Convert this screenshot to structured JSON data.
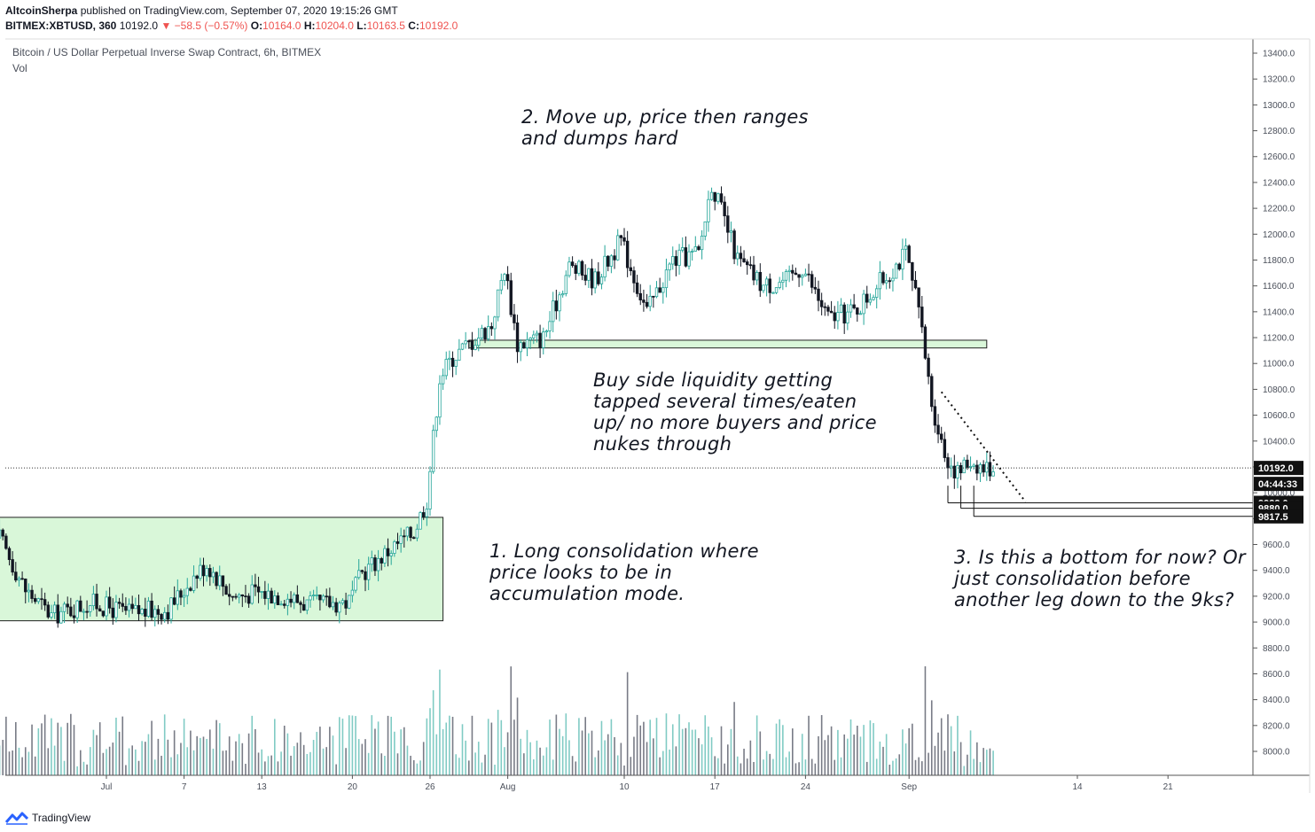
{
  "header": {
    "author": "AltcoinSherpa",
    "published": "published on TradingView.com, September 07, 2020 19:15:26 GMT",
    "symbol": "BITMEX:XBTUSD, 360",
    "last": "10192.0",
    "change": "−58.5 (−0.57%)",
    "o_label": "O:",
    "o": "10164.0",
    "h_label": "H:",
    "h": "10204.0",
    "l_label": "L:",
    "l": "10163.5",
    "c_label": "C:",
    "c": "10192.0"
  },
  "chart_title": "Bitcoin / US Dollar Perpetual Inverse Swap Contract, 6h, BITMEX",
  "vol_label": "Vol",
  "footer": {
    "brand": "TradingView"
  },
  "notes": {
    "n1": "1. Long consolidation  where\nprice looks to be in\naccumulation mode.",
    "n2": "2. Move up, price then ranges\nand dumps hard",
    "n3": "Buy side liquidity getting\ntapped several times/eaten\nup/ no more buyers and price\nnukes through",
    "n4": "3. Is this a bottom for now? Or\njust consolidation before\nanother leg down to the 9ks?"
  },
  "price_tags": {
    "last": "10192.0",
    "countdown": "04:44:33",
    "l1": "9922.0",
    "l2": "9880.0",
    "l3": "9817.5"
  },
  "colors": {
    "up": "#26a69a",
    "down": "#131722",
    "vol_up": "#80cbc4",
    "vol_down": "#787b86",
    "zone_fill": "#d9f7d9",
    "zone_stroke": "#222222"
  },
  "chart_data": {
    "type": "candlestick",
    "title": "Bitcoin / US Dollar Perpetual Inverse Swap Contract, 6h, BITMEX",
    "y_ticks": [
      13400,
      13200,
      13000,
      12800,
      12600,
      12400,
      12200,
      12000,
      11800,
      11600,
      11400,
      11200,
      11000,
      10800,
      10600,
      10400,
      10200,
      10000,
      9800,
      9600,
      9400,
      9200,
      9000,
      8800,
      8600,
      8400,
      8200,
      8000
    ],
    "y_tick_labels": [
      "13400.0",
      "13200.0",
      "13000.0",
      "12800.0",
      "12600.0",
      "12400.0",
      "12200.0",
      "12000.0",
      "11800.0",
      "11600.0",
      "11400.0",
      "11200.0",
      "11000.0",
      "10800.0",
      "10600.0",
      "10400.0",
      "",
      "10000.0",
      "9800.0",
      "9600.0",
      "9400.0",
      "9200.0",
      "9000.0",
      "8800.0",
      "8600.0",
      "8400.0",
      "8200.0",
      "8000.0"
    ],
    "x_ticks": [
      "Jul",
      "7",
      "13",
      "20",
      "26",
      "Aug",
      "10",
      "17",
      "24",
      "Sep",
      "14",
      "21"
    ],
    "keypoints": [
      {
        "date": "2020-06-23",
        "price": 9650
      },
      {
        "date": "2020-06-25",
        "price": 9250
      },
      {
        "date": "2020-06-27",
        "price": 9050
      },
      {
        "date": "2020-06-30",
        "price": 9150
      },
      {
        "date": "2020-07-03",
        "price": 9070
      },
      {
        "date": "2020-07-06",
        "price": 9100
      },
      {
        "date": "2020-07-08",
        "price": 9350
      },
      {
        "date": "2020-07-09",
        "price": 9450
      },
      {
        "date": "2020-07-11",
        "price": 9200
      },
      {
        "date": "2020-07-13",
        "price": 9230
      },
      {
        "date": "2020-07-15",
        "price": 9200
      },
      {
        "date": "2020-07-17",
        "price": 9130
      },
      {
        "date": "2020-07-20",
        "price": 9160
      },
      {
        "date": "2020-07-21",
        "price": 9380
      },
      {
        "date": "2020-07-23",
        "price": 9550
      },
      {
        "date": "2020-07-25",
        "price": 9700
      },
      {
        "date": "2020-07-26",
        "price": 9950
      },
      {
        "date": "2020-07-27",
        "price": 10900
      },
      {
        "date": "2020-07-28",
        "price": 11050
      },
      {
        "date": "2020-07-31",
        "price": 11300
      },
      {
        "date": "2020-08-01",
        "price": 11750
      },
      {
        "date": "2020-08-02",
        "price": 11150
      },
      {
        "date": "2020-08-04",
        "price": 11200
      },
      {
        "date": "2020-08-06",
        "price": 11750
      },
      {
        "date": "2020-08-08",
        "price": 11650
      },
      {
        "date": "2020-08-10",
        "price": 11950
      },
      {
        "date": "2020-08-12",
        "price": 11400
      },
      {
        "date": "2020-08-14",
        "price": 11800
      },
      {
        "date": "2020-08-16",
        "price": 11850
      },
      {
        "date": "2020-08-17",
        "price": 12400
      },
      {
        "date": "2020-08-19",
        "price": 11800
      },
      {
        "date": "2020-08-21",
        "price": 11600
      },
      {
        "date": "2020-08-23",
        "price": 11650
      },
      {
        "date": "2020-08-24",
        "price": 11750
      },
      {
        "date": "2020-08-26",
        "price": 11350
      },
      {
        "date": "2020-08-28",
        "price": 11400
      },
      {
        "date": "2020-09-01",
        "price": 11850
      },
      {
        "date": "2020-09-02",
        "price": 11400
      },
      {
        "date": "2020-09-03",
        "price": 10700
      },
      {
        "date": "2020-09-04",
        "price": 10300
      },
      {
        "date": "2020-09-05",
        "price": 10150
      },
      {
        "date": "2020-09-06",
        "price": 10250
      },
      {
        "date": "2020-09-07",
        "price": 10192
      }
    ],
    "annotations": {
      "accumulation_zone": {
        "from": "2020-06-22",
        "to": "2020-07-27",
        "low": 9010,
        "high": 9810
      },
      "liquidity_zone": {
        "from": "2020-07-29",
        "to": "2020-09-07",
        "low": 11120,
        "high": 11180
      },
      "levels": [
        9922.0,
        9880.0,
        9817.5
      ],
      "last_price": 10192.0
    }
  }
}
